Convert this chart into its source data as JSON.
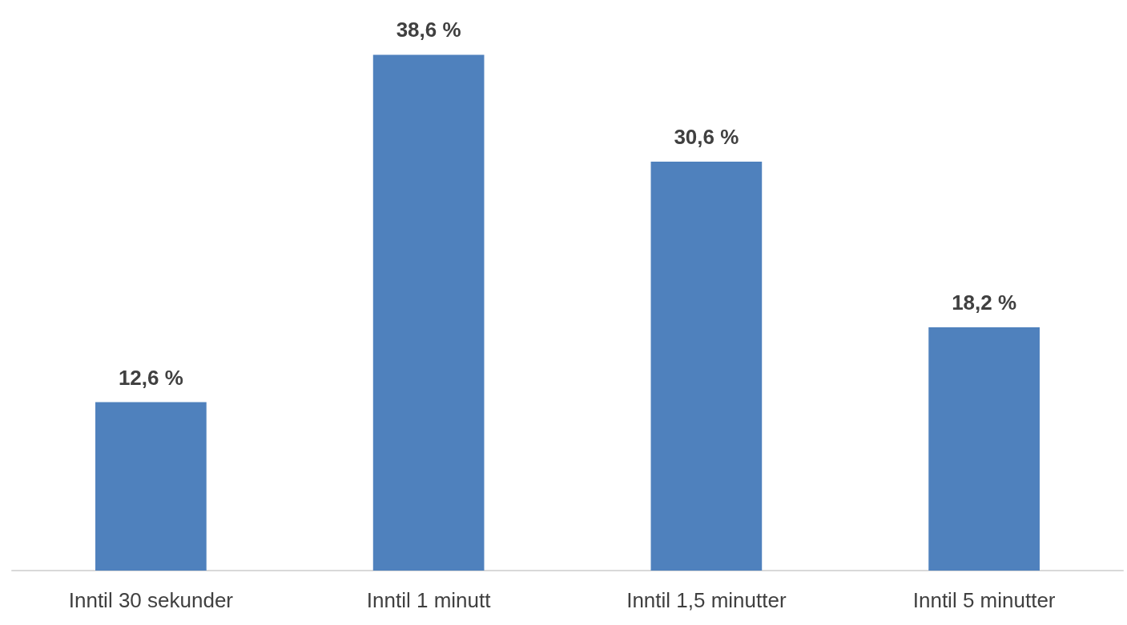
{
  "chart_data": {
    "type": "bar",
    "categories": [
      "Inntil 30 sekunder",
      "Inntil 1 minutt",
      "Inntil 1,5 minutter",
      "Inntil 5 minutter"
    ],
    "values": [
      12.6,
      38.6,
      30.6,
      18.2
    ],
    "value_labels": [
      "12,6 %",
      "38,6 %",
      "30,6 %",
      "18,2 %"
    ],
    "color": "#4f81bd"
  }
}
